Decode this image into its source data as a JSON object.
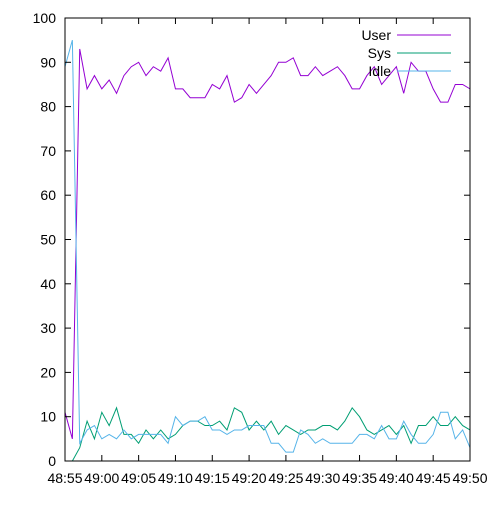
{
  "chart_data": {
    "type": "line",
    "title": "",
    "xlabel": "",
    "ylabel": "",
    "ylim": [
      0,
      100
    ],
    "yticks": [
      0,
      10,
      20,
      30,
      40,
      50,
      60,
      70,
      80,
      90,
      100
    ],
    "xlim_seconds": [
      0,
      55
    ],
    "xticks": [
      {
        "label": "48:55",
        "t": 0
      },
      {
        "label": "49:00",
        "t": 5
      },
      {
        "label": "49:05",
        "t": 10
      },
      {
        "label": "49:10",
        "t": 15
      },
      {
        "label": "49:15",
        "t": 20
      },
      {
        "label": "49:20",
        "t": 25
      },
      {
        "label": "49:25",
        "t": 30
      },
      {
        "label": "49:30",
        "t": 35
      },
      {
        "label": "49:35",
        "t": 40
      },
      {
        "label": "49:40",
        "t": 45
      },
      {
        "label": "49:45",
        "t": 50
      },
      {
        "label": "49:50",
        "t": 55
      }
    ],
    "grid": false,
    "legend_position": "top-right",
    "series": [
      {
        "name": "User",
        "color": "#9400d3",
        "values": [
          11,
          5,
          93,
          84,
          87,
          84,
          86,
          83,
          87,
          89,
          90,
          87,
          89,
          88,
          91,
          84,
          84,
          82,
          82,
          82,
          85,
          84,
          87,
          81,
          82,
          85,
          83,
          85,
          87,
          90,
          90,
          91,
          87,
          87,
          89,
          87,
          88,
          89,
          87,
          84,
          84,
          87,
          89,
          85,
          87,
          89,
          83,
          90,
          88,
          88,
          84,
          81,
          81,
          85,
          85,
          84
        ]
      },
      {
        "name": "Sys",
        "color": "#009e73",
        "values": [
          0,
          0,
          3,
          9,
          5,
          11,
          8,
          12,
          6,
          6,
          4,
          7,
          5,
          7,
          5,
          6,
          8,
          9,
          9,
          8,
          8,
          9,
          7,
          12,
          11,
          7,
          9,
          7,
          9,
          6,
          8,
          7,
          6,
          7,
          7,
          8,
          8,
          7,
          9,
          12,
          10,
          7,
          6,
          7,
          8,
          6,
          8,
          4,
          8,
          8,
          10,
          8,
          8,
          10,
          8,
          7
        ]
      },
      {
        "name": "Idle",
        "color": "#56b4e9",
        "values": [
          89,
          95,
          4,
          7,
          8,
          5,
          6,
          5,
          7,
          5,
          6,
          6,
          6,
          6,
          4,
          10,
          8,
          9,
          9,
          10,
          7,
          7,
          6,
          7,
          7,
          8,
          8,
          8,
          4,
          4,
          2,
          2,
          7,
          6,
          4,
          5,
          4,
          4,
          4,
          4,
          6,
          6,
          5,
          8,
          5,
          5,
          9,
          6,
          4,
          4,
          6,
          11,
          11,
          5,
          7,
          3
        ]
      }
    ]
  }
}
